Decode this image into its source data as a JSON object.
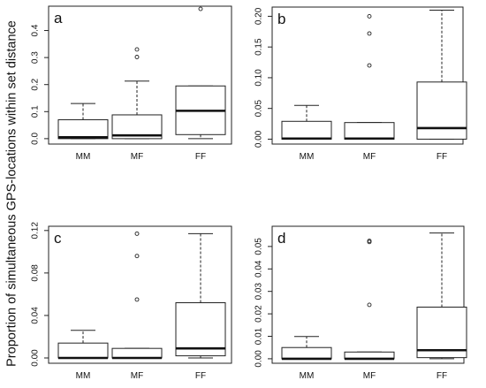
{
  "ylabel": "Proportion of simultaneous  GPS-locations within set distance",
  "chart_data": [
    {
      "type": "box",
      "panel_label": "a",
      "categories": [
        "MM",
        "MF",
        "FF"
      ],
      "ylim": [
        -0.02,
        0.49
      ],
      "yticks": [
        0.0,
        0.1,
        0.2,
        0.3,
        0.4
      ],
      "ytick_labels": [
        "0.0",
        "0.1",
        "0.2",
        "0.3",
        "0.4"
      ],
      "boxes": [
        {
          "category": "MM",
          "whisker_low": 0.0,
          "q1": 0.0,
          "median": 0.005,
          "q3": 0.07,
          "whisker_high": 0.13,
          "outliers": []
        },
        {
          "category": "MF",
          "whisker_low": 0.0,
          "q1": 0.0,
          "median": 0.012,
          "q3": 0.088,
          "whisker_high": 0.213,
          "outliers": [
            0.302,
            0.33
          ]
        },
        {
          "category": "FF",
          "whisker_low": 0.0,
          "q1": 0.015,
          "median": 0.103,
          "q3": 0.195,
          "whisker_high": 0.195,
          "outliers": [
            0.48
          ]
        }
      ]
    },
    {
      "type": "box",
      "panel_label": "b",
      "categories": [
        "MM",
        "MF",
        "FF"
      ],
      "ylim": [
        -0.008,
        0.215
      ],
      "yticks": [
        0.0,
        0.05,
        0.1,
        0.15,
        0.2
      ],
      "ytick_labels": [
        "0.00",
        "0.05",
        "0.10",
        "0.15",
        "0.20"
      ],
      "boxes": [
        {
          "category": "MM",
          "whisker_low": 0.0,
          "q1": 0.0,
          "median": 0.001,
          "q3": 0.029,
          "whisker_high": 0.055,
          "outliers": []
        },
        {
          "category": "MF",
          "whisker_low": 0.0,
          "q1": 0.0,
          "median": 0.001,
          "q3": 0.027,
          "whisker_high": 0.027,
          "outliers": [
            0.12,
            0.172,
            0.2
          ]
        },
        {
          "category": "FF",
          "whisker_low": 0.0,
          "q1": 0.0,
          "median": 0.018,
          "q3": 0.093,
          "whisker_high": 0.21,
          "outliers": []
        }
      ]
    },
    {
      "type": "box",
      "panel_label": "c",
      "categories": [
        "MM",
        "MF",
        "FF"
      ],
      "ylim": [
        -0.005,
        0.124
      ],
      "yticks": [
        0.0,
        0.04,
        0.08,
        0.12
      ],
      "ytick_labels": [
        "0.00",
        "0.04",
        "0.08",
        "0.12"
      ],
      "boxes": [
        {
          "category": "MM",
          "whisker_low": 0.0,
          "q1": 0.0,
          "median": 0.0,
          "q3": 0.014,
          "whisker_high": 0.026,
          "outliers": []
        },
        {
          "category": "MF",
          "whisker_low": 0.0,
          "q1": 0.0,
          "median": 0.0,
          "q3": 0.009,
          "whisker_high": 0.009,
          "outliers": [
            0.055,
            0.096,
            0.117
          ]
        },
        {
          "category": "FF",
          "whisker_low": 0.0,
          "q1": 0.002,
          "median": 0.009,
          "q3": 0.052,
          "whisker_high": 0.117,
          "outliers": []
        }
      ]
    },
    {
      "type": "box",
      "panel_label": "d",
      "categories": [
        "MM",
        "MF",
        "FF"
      ],
      "ylim": [
        -0.002,
        0.059
      ],
      "yticks": [
        0.0,
        0.01,
        0.02,
        0.03,
        0.04,
        0.05
      ],
      "ytick_labels": [
        "0.00",
        "0.01",
        "0.02",
        "0.03",
        "0.04",
        "0.05"
      ],
      "boxes": [
        {
          "category": "MM",
          "whisker_low": 0.0,
          "q1": 0.0,
          "median": 0.0,
          "q3": 0.005,
          "whisker_high": 0.0099,
          "outliers": []
        },
        {
          "category": "MF",
          "whisker_low": 0.0,
          "q1": 0.0,
          "median": 0.0,
          "q3": 0.003,
          "whisker_high": 0.003,
          "outliers": [
            0.024,
            0.052,
            0.0525
          ]
        },
        {
          "category": "FF",
          "whisker_low": 0.0,
          "q1": 0.0005,
          "median": 0.0038,
          "q3": 0.023,
          "whisker_high": 0.056,
          "outliers": []
        }
      ]
    }
  ]
}
